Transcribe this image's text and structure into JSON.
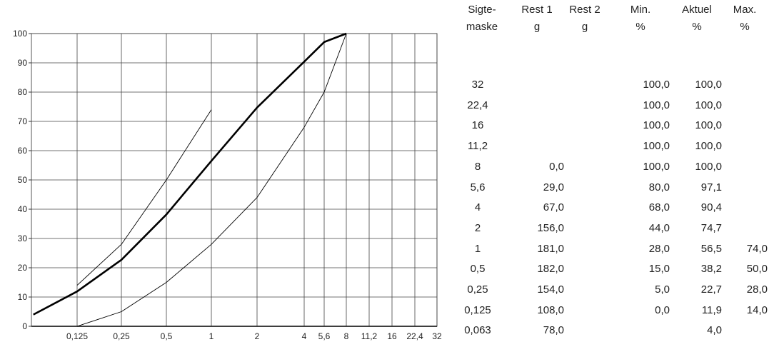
{
  "chart_data": {
    "type": "line",
    "xscale": "log",
    "x_ticks": [
      "0,125",
      "0,25",
      "0,5",
      "1",
      "2",
      "4",
      "5,6",
      "8",
      "11,2",
      "16",
      "22,4",
      "32"
    ],
    "y_ticks": [
      "0",
      "10",
      "20",
      "30",
      "40",
      "50",
      "60",
      "70",
      "80",
      "90",
      "100"
    ],
    "ylim": [
      0,
      100
    ],
    "grid": true,
    "series": [
      {
        "style": "bold",
        "x": [
          0.063,
          0.125,
          0.25,
          0.5,
          1,
          2,
          4,
          5.6,
          8
        ],
        "y": [
          4.0,
          11.9,
          22.7,
          38.2,
          56.5,
          74.7,
          90.4,
          97.1,
          100.0
        ]
      },
      {
        "style": "thin",
        "x": [
          0.125,
          0.25,
          0.5,
          1,
          2,
          4,
          5.6,
          8
        ],
        "y": [
          0.0,
          5.0,
          15.0,
          28.0,
          44.0,
          68.0,
          80.0,
          100.0
        ]
      },
      {
        "style": "thin",
        "x": [
          0.125,
          0.25,
          0.5,
          1
        ],
        "y": [
          14.0,
          28.0,
          50.0,
          74.0
        ]
      }
    ]
  },
  "table": {
    "headers": [
      {
        "line1": "Sigte-",
        "line2": "maske"
      },
      {
        "line1": "Rest 1",
        "line2": "g"
      },
      {
        "line1": "Rest 2",
        "line2": "g"
      },
      {
        "line1": "Min.",
        "line2": "%"
      },
      {
        "line1": "Aktuel",
        "line2": "%"
      },
      {
        "line1": "Max.",
        "line2": "%"
      }
    ],
    "rows": [
      {
        "sieve": "32",
        "rest1": "",
        "rest2": "",
        "min": "100,0",
        "actual": "100,0",
        "max": ""
      },
      {
        "sieve": "22,4",
        "rest1": "",
        "rest2": "",
        "min": "100,0",
        "actual": "100,0",
        "max": ""
      },
      {
        "sieve": "16",
        "rest1": "",
        "rest2": "",
        "min": "100,0",
        "actual": "100,0",
        "max": ""
      },
      {
        "sieve": "11,2",
        "rest1": "",
        "rest2": "",
        "min": "100,0",
        "actual": "100,0",
        "max": ""
      },
      {
        "sieve": "8",
        "rest1": "0,0",
        "rest2": "",
        "min": "100,0",
        "actual": "100,0",
        "max": ""
      },
      {
        "sieve": "5,6",
        "rest1": "29,0",
        "rest2": "",
        "min": "80,0",
        "actual": "97,1",
        "max": ""
      },
      {
        "sieve": "4",
        "rest1": "67,0",
        "rest2": "",
        "min": "68,0",
        "actual": "90,4",
        "max": ""
      },
      {
        "sieve": "2",
        "rest1": "156,0",
        "rest2": "",
        "min": "44,0",
        "actual": "74,7",
        "max": ""
      },
      {
        "sieve": "1",
        "rest1": "181,0",
        "rest2": "",
        "min": "28,0",
        "actual": "56,5",
        "max": "74,0"
      },
      {
        "sieve": "0,5",
        "rest1": "182,0",
        "rest2": "",
        "min": "15,0",
        "actual": "38,2",
        "max": "50,0"
      },
      {
        "sieve": "0,25",
        "rest1": "154,0",
        "rest2": "",
        "min": "5,0",
        "actual": "22,7",
        "max": "28,0"
      },
      {
        "sieve": "0,125",
        "rest1": "108,0",
        "rest2": "",
        "min": "0,0",
        "actual": "11,9",
        "max": "14,0"
      },
      {
        "sieve": "0,063",
        "rest1": "78,0",
        "rest2": "",
        "min": "",
        "actual": "4,0",
        "max": ""
      }
    ]
  }
}
